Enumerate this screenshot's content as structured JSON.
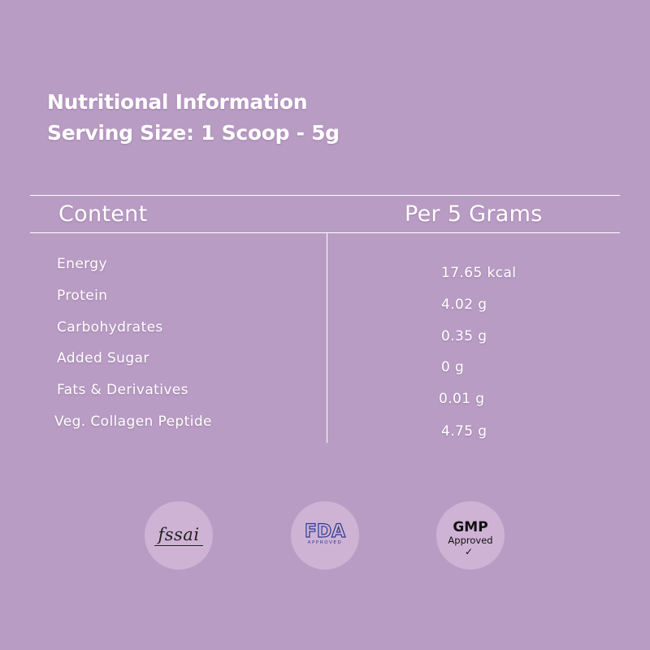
{
  "heading": {
    "line1": "Nutritional Information",
    "line2": "Serving Size: 1 Scoop - 5g"
  },
  "table": {
    "header_left": "Content",
    "header_right": "Per 5 Grams",
    "rows": [
      {
        "name": "Energy",
        "value": "17.65 kcal"
      },
      {
        "name": "Protein",
        "value": "4.02 g"
      },
      {
        "name": "Carbohydrates",
        "value": "0.35 g"
      },
      {
        "name": "Added Sugar",
        "value": "0 g"
      },
      {
        "name": "Fats & Derivatives",
        "value": "0.01 g"
      },
      {
        "name": "Veg. Collagen Peptide",
        "value": "4.75 g"
      }
    ]
  },
  "badges": {
    "fssai": {
      "label": "fssai"
    },
    "fda": {
      "label": "FDA",
      "sub": "APPROVED"
    },
    "gmp": {
      "label": "GMP",
      "sub": "Approved",
      "check": "✓"
    }
  },
  "colors": {
    "background": "#b99cc4",
    "badge_circle": "#cfb3d5",
    "text": "#ffffff",
    "fda_blue": "#2b3a8f"
  }
}
